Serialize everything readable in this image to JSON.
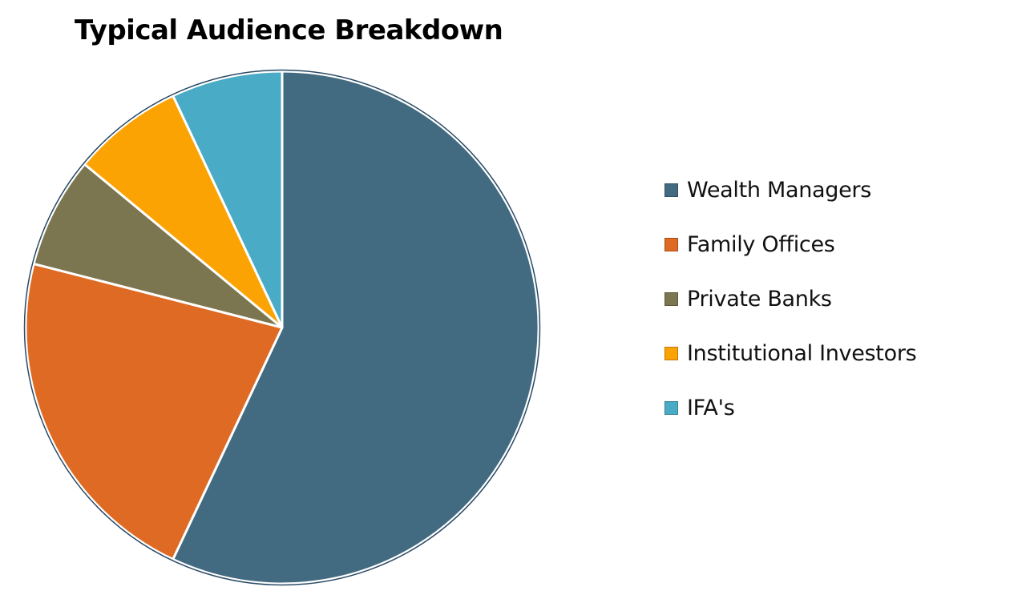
{
  "chart_data": {
    "type": "pie",
    "title": "Typical Audience Breakdown",
    "legend_position": "right",
    "slices": [
      {
        "label": "Wealth Managers",
        "value": 57,
        "color": "#426A80"
      },
      {
        "label": "Family Offices",
        "value": 22,
        "color": "#DE6A23"
      },
      {
        "label": "Private Banks",
        "value": 7,
        "color": "#7C7650"
      },
      {
        "label": "Institutional Investors",
        "value": 7,
        "color": "#FCA304"
      },
      {
        "label": "IFA's",
        "value": 7,
        "color": "#49ABC5"
      }
    ]
  }
}
